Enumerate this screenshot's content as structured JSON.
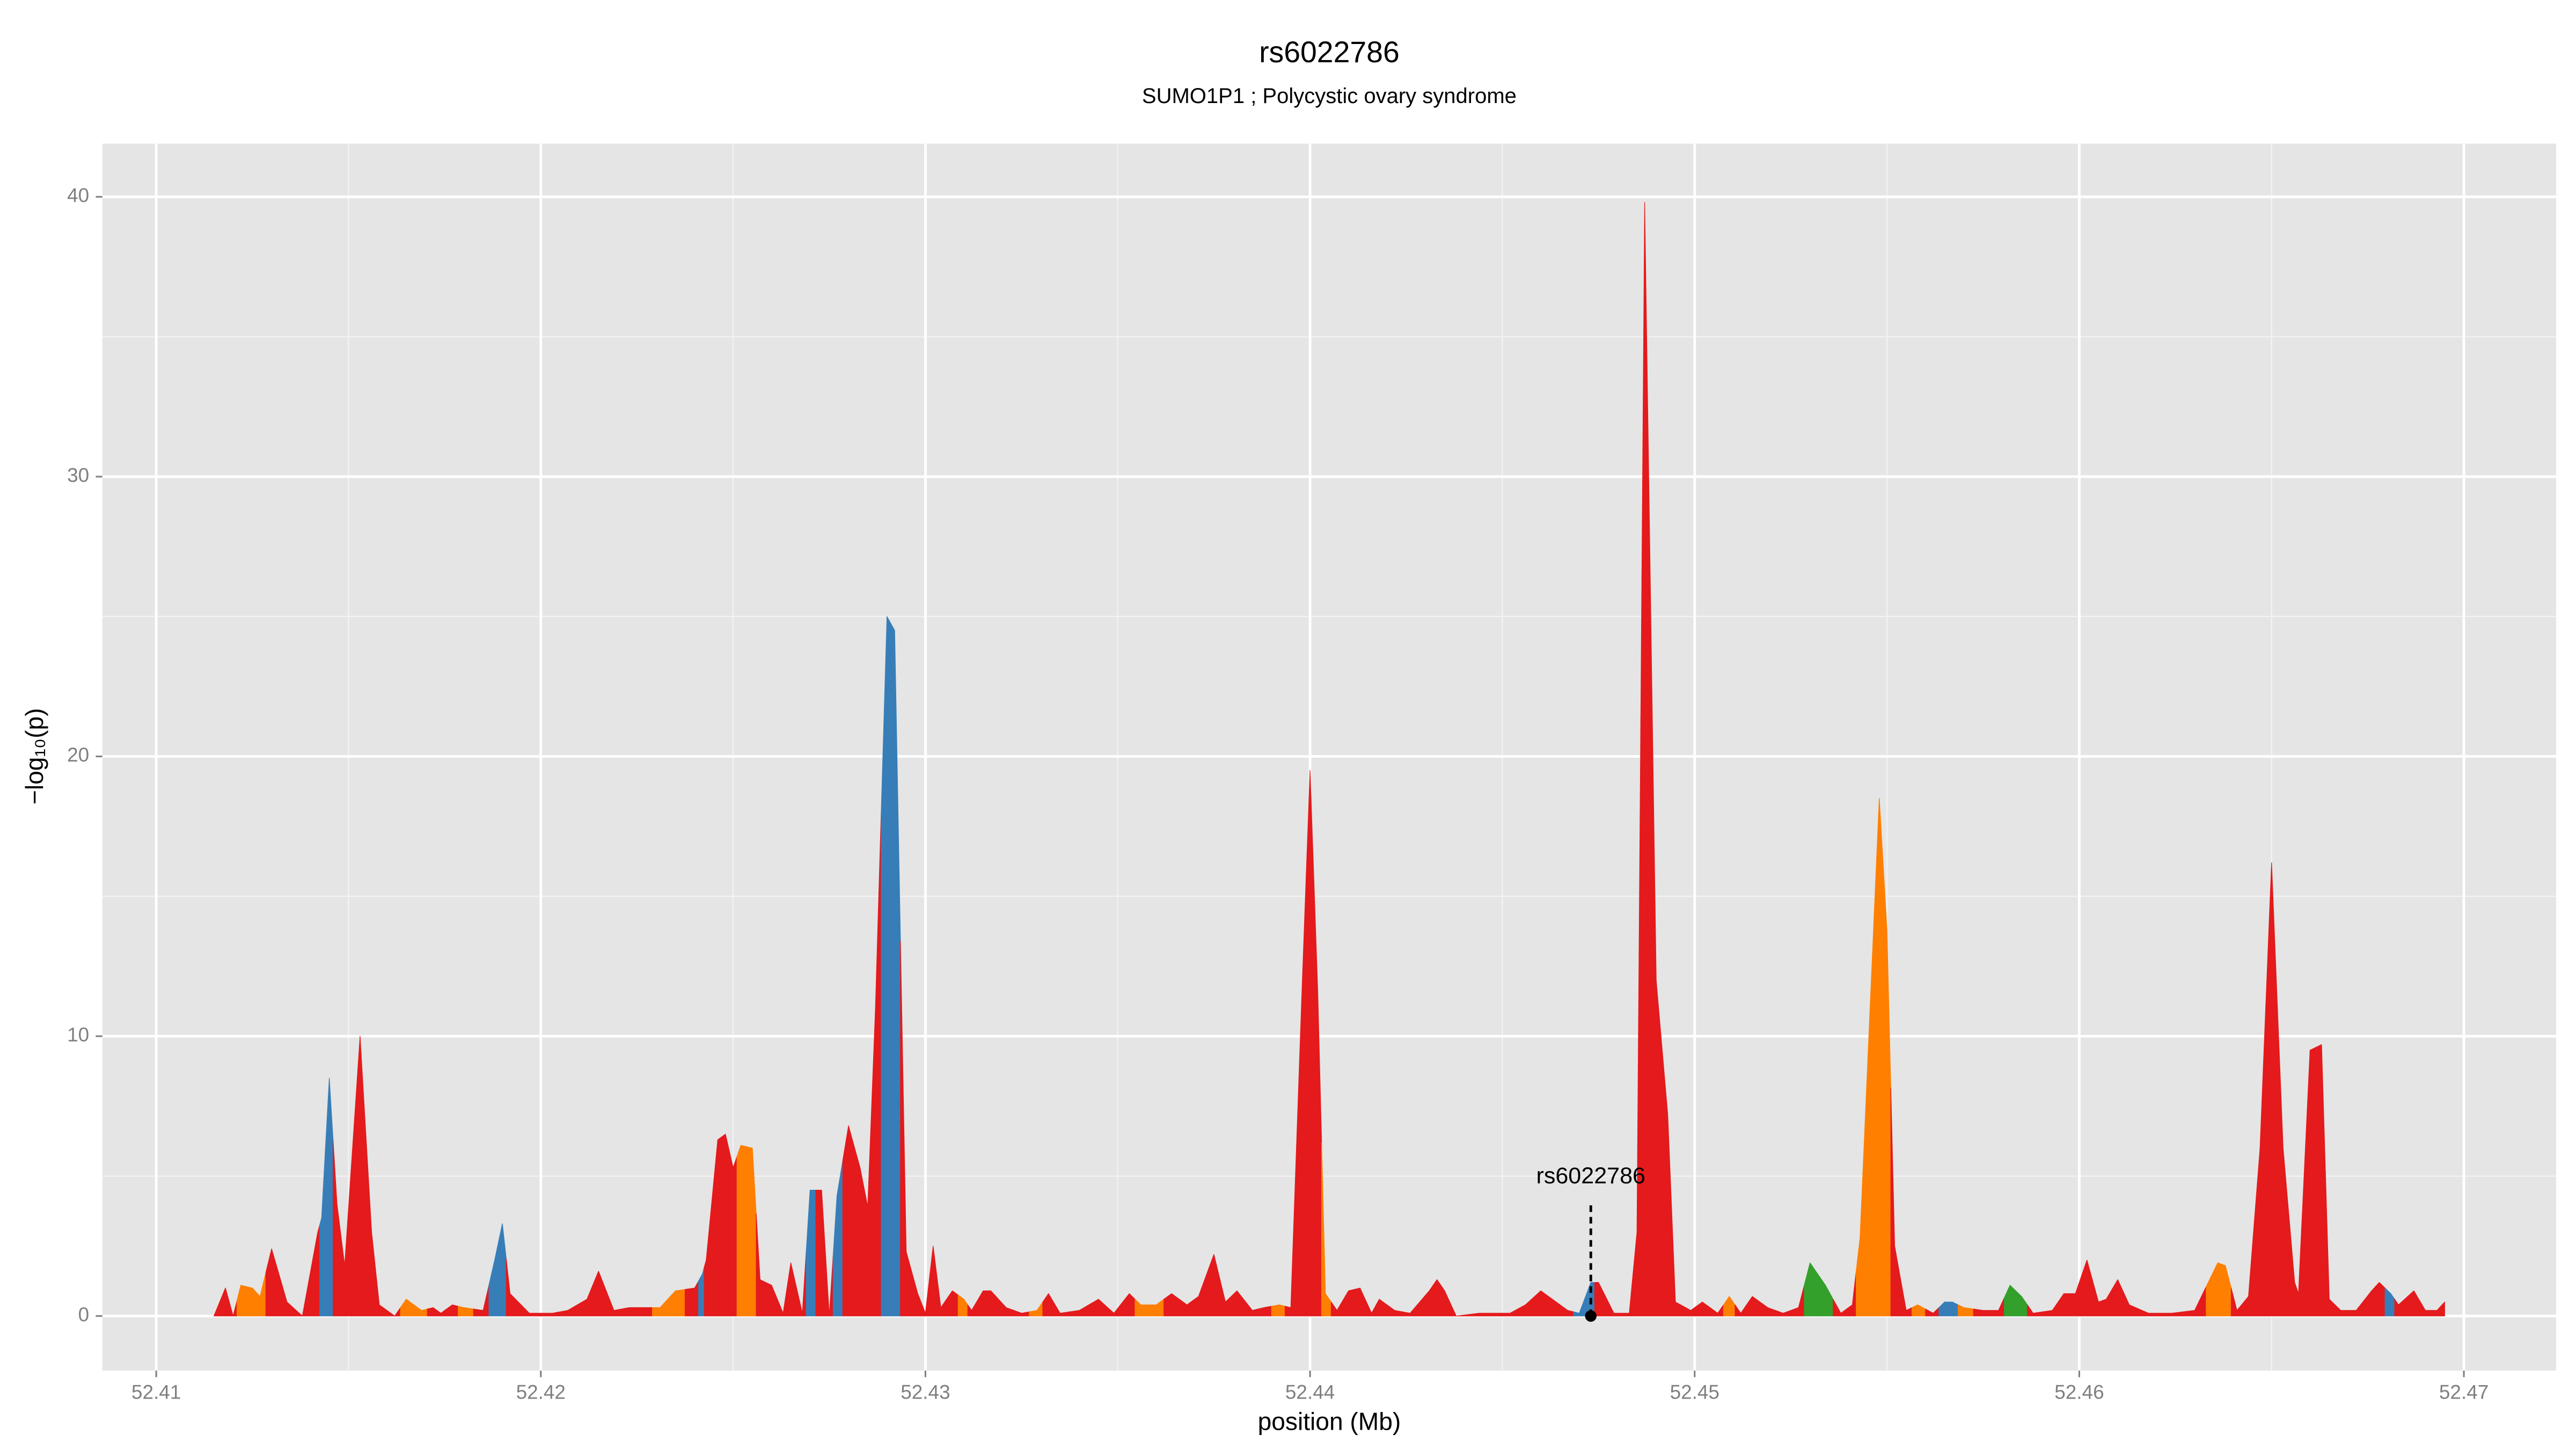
{
  "chart_data": {
    "type": "area",
    "title": "rs6022786",
    "subtitle": "SUMO1P1 ; Polycystic ovary syndrome",
    "x_label": "position (Mb)",
    "y_label": "−log₁₀(p)",
    "x": [
      52.4115,
      52.4118,
      52.412,
      52.4122,
      52.4125,
      52.4127,
      52.413,
      52.4134,
      52.4138,
      52.4142,
      52.4143,
      52.4145,
      52.4147,
      52.4149,
      52.4153,
      52.4156,
      52.4158,
      52.4162,
      52.4165,
      52.4169,
      52.4172,
      52.4174,
      52.4177,
      52.418,
      52.4185,
      52.4188,
      52.419,
      52.4192,
      52.4197,
      52.4203,
      52.4207,
      52.4212,
      52.4215,
      52.4219,
      52.4223,
      52.4227,
      52.4231,
      52.4235,
      52.424,
      52.4242,
      52.4243,
      52.4246,
      52.4248,
      52.425,
      52.4252,
      52.4255,
      52.4257,
      52.426,
      52.4263,
      52.4265,
      52.4268,
      52.427,
      52.4273,
      52.4275,
      52.4277,
      52.428,
      52.4283,
      52.4285,
      52.4287,
      52.429,
      52.4292,
      52.4295,
      52.4298,
      52.43,
      52.4302,
      52.4304,
      52.4307,
      52.431,
      52.4312,
      52.4315,
      52.4317,
      52.4321,
      52.4325,
      52.4329,
      52.4332,
      52.4335,
      52.434,
      52.4345,
      52.4349,
      52.4353,
      52.4356,
      52.436,
      52.4364,
      52.4368,
      52.4371,
      52.4375,
      52.4378,
      52.4381,
      52.4385,
      52.4388,
      52.4392,
      52.4395,
      52.4398,
      52.44,
      52.4402,
      52.4404,
      52.4407,
      52.441,
      52.4413,
      52.4416,
      52.4418,
      52.4422,
      52.4426,
      52.4431,
      52.4433,
      52.4435,
      52.4438,
      52.4444,
      52.4448,
      52.4452,
      52.4456,
      52.446,
      52.4463,
      52.4467,
      52.447,
      52.4473,
      52.4475,
      52.4479,
      52.4483,
      52.4485,
      52.4487,
      52.449,
      52.4493,
      52.4495,
      52.4499,
      52.4502,
      52.4506,
      52.4509,
      52.4512,
      52.4515,
      52.4519,
      52.4523,
      52.4527,
      52.453,
      52.4534,
      52.4538,
      52.4541,
      52.4543,
      52.4548,
      52.455,
      52.4552,
      52.4555,
      52.4558,
      52.4562,
      52.4565,
      52.4567,
      52.457,
      52.4575,
      52.4579,
      52.4582,
      52.4585,
      52.4588,
      52.4593,
      52.4596,
      52.4599,
      52.4602,
      52.4605,
      52.4607,
      52.461,
      52.4613,
      52.4618,
      52.4624,
      52.463,
      52.4636,
      52.4638,
      52.4641,
      52.4644,
      52.4647,
      52.465,
      52.4653,
      52.4656,
      52.4657,
      52.466,
      52.4663,
      52.4665,
      52.4668,
      52.4672,
      52.4676,
      52.4678,
      52.4681,
      52.4683,
      52.4687,
      52.469,
      52.4693,
      52.4695
    ],
    "values": [
      0,
      1,
      0,
      1.1,
      1,
      0.7,
      2.4,
      0.5,
      0,
      3,
      3.5,
      8.5,
      4,
      1.8,
      10,
      3,
      0.4,
      0,
      0.6,
      0.2,
      0.3,
      0.1,
      0.4,
      0.3,
      0.2,
      2,
      3.3,
      0.8,
      0.1,
      0.1,
      0.2,
      0.6,
      1.6,
      0.2,
      0.3,
      0.3,
      0.3,
      0.9,
      1,
      1.5,
      2,
      6.3,
      6.5,
      5.3,
      6.1,
      6,
      1.3,
      1.1,
      0.1,
      1.9,
      0.1,
      4.5,
      4.5,
      0,
      4.3,
      6.8,
      5.3,
      3.9,
      11,
      25,
      24.5,
      2.3,
      0.8,
      0.1,
      2.5,
      0.3,
      0.9,
      0.6,
      0.2,
      0.9,
      0.9,
      0.3,
      0.1,
      0.2,
      0.8,
      0.1,
      0.2,
      0.6,
      0.1,
      0.8,
      0.4,
      0.4,
      0.8,
      0.4,
      0.7,
      2.2,
      0.5,
      0.9,
      0.2,
      0.3,
      0.4,
      0.3,
      12,
      19.5,
      11.6,
      0.8,
      0.2,
      0.9,
      1,
      0.1,
      0.6,
      0.2,
      0.1,
      0.9,
      1.3,
      0.9,
      0,
      0.1,
      0.1,
      0.1,
      0.4,
      0.9,
      0.6,
      0.2,
      0.1,
      1.2,
      1.2,
      0.1,
      0.1,
      3,
      39.8,
      12,
      7.2,
      0.5,
      0.2,
      0.5,
      0.1,
      0.7,
      0.1,
      0.7,
      0.3,
      0.1,
      0.3,
      1.9,
      1.1,
      0.1,
      0.4,
      2.8,
      18.5,
      13.8,
      2.5,
      0.2,
      0.4,
      0.1,
      0.5,
      0.5,
      0.3,
      0.2,
      0.2,
      1.1,
      0.7,
      0.1,
      0.2,
      0.8,
      0.8,
      2,
      0.5,
      0.6,
      1.3,
      0.4,
      0.1,
      0.1,
      0.2,
      1.9,
      1.8,
      0.2,
      0.7,
      6,
      16.2,
      6,
      1.2,
      0.8,
      9.5,
      9.7,
      0.6,
      0.2,
      0.2,
      0.9,
      1.2,
      0.8,
      0.4,
      0.9,
      0.2,
      0.2,
      0.5
    ],
    "colors": [
      "#e41a1c",
      "#e41a1c",
      "#e41a1c",
      "#ff7f00",
      "#ff7f00",
      "#ff7f00",
      "#e41a1c",
      "#e41a1c",
      "#e41a1c",
      "#e41a1c",
      "#377eb8",
      "#377eb8",
      "#e41a1c",
      "#e41a1c",
      "#e41a1c",
      "#e41a1c",
      "#e41a1c",
      "#e41a1c",
      "#ff7f00",
      "#ff7f00",
      "#e41a1c",
      "#e41a1c",
      "#e41a1c",
      "#ff7f00",
      "#e41a1c",
      "#377eb8",
      "#377eb8",
      "#e41a1c",
      "#e41a1c",
      "#e41a1c",
      "#e41a1c",
      "#e41a1c",
      "#e41a1c",
      "#e41a1c",
      "#e41a1c",
      "#e41a1c",
      "#ff7f00",
      "#ff7f00",
      "#e41a1c",
      "#377eb8",
      "#e41a1c",
      "#e41a1c",
      "#e41a1c",
      "#e41a1c",
      "#ff7f00",
      "#ff7f00",
      "#e41a1c",
      "#e41a1c",
      "#e41a1c",
      "#e41a1c",
      "#e41a1c",
      "#377eb8",
      "#e41a1c",
      "#e41a1c",
      "#377eb8",
      "#e41a1c",
      "#e41a1c",
      "#e41a1c",
      "#e41a1c",
      "#377eb8",
      "#377eb8",
      "#e41a1c",
      "#e41a1c",
      "#e41a1c",
      "#e41a1c",
      "#e41a1c",
      "#e41a1c",
      "#ff7f00",
      "#e41a1c",
      "#e41a1c",
      "#e41a1c",
      "#e41a1c",
      "#e41a1c",
      "#ff7f00",
      "#e41a1c",
      "#e41a1c",
      "#e41a1c",
      "#e41a1c",
      "#e41a1c",
      "#e41a1c",
      "#ff7f00",
      "#ff7f00",
      "#e41a1c",
      "#e41a1c",
      "#e41a1c",
      "#e41a1c",
      "#e41a1c",
      "#e41a1c",
      "#e41a1c",
      "#e41a1c",
      "#ff7f00",
      "#e41a1c",
      "#e41a1c",
      "#e41a1c",
      "#e41a1c",
      "#ff7f00",
      "#e41a1c",
      "#e41a1c",
      "#e41a1c",
      "#e41a1c",
      "#e41a1c",
      "#e41a1c",
      "#e41a1c",
      "#e41a1c",
      "#e41a1c",
      "#e41a1c",
      "#e41a1c",
      "#e41a1c",
      "#e41a1c",
      "#e41a1c",
      "#e41a1c",
      "#e41a1c",
      "#e41a1c",
      "#e41a1c",
      "#377eb8",
      "#377eb8",
      "#e41a1c",
      "#e41a1c",
      "#e41a1c",
      "#e41a1c",
      "#e41a1c",
      "#e41a1c",
      "#e41a1c",
      "#e41a1c",
      "#e41a1c",
      "#e41a1c",
      "#e41a1c",
      "#ff7f00",
      "#e41a1c",
      "#e41a1c",
      "#e41a1c",
      "#e41a1c",
      "#e41a1c",
      "#33a02c",
      "#33a02c",
      "#e41a1c",
      "#e41a1c",
      "#ff7f00",
      "#ff7f00",
      "#ff7f00",
      "#e41a1c",
      "#e41a1c",
      "#ff7f00",
      "#e41a1c",
      "#377eb8",
      "#377eb8",
      "#ff7f00",
      "#e41a1c",
      "#e41a1c",
      "#33a02c",
      "#33a02c",
      "#e41a1c",
      "#e41a1c",
      "#e41a1c",
      "#e41a1c",
      "#e41a1c",
      "#e41a1c",
      "#e41a1c",
      "#e41a1c",
      "#e41a1c",
      "#e41a1c",
      "#e41a1c",
      "#e41a1c",
      "#ff7f00",
      "#ff7f00",
      "#e41a1c",
      "#e41a1c",
      "#e41a1c",
      "#e41a1c",
      "#e41a1c",
      "#e41a1c",
      "#e41a1c",
      "#e41a1c",
      "#e41a1c",
      "#e41a1c",
      "#e41a1c",
      "#e41a1c",
      "#e41a1c",
      "#e41a1c",
      "#377eb8",
      "#e41a1c",
      "#e41a1c",
      "#e41a1c",
      "#e41a1c",
      "#e41a1c"
    ],
    "xlim": [
      52.4086,
      52.4724
    ],
    "ylim": [
      -1.95,
      41.9
    ],
    "xticks": [
      52.41,
      52.42,
      52.43,
      52.44,
      52.45,
      52.46,
      52.47
    ],
    "yticks": [
      0,
      10,
      20,
      30,
      40
    ],
    "grid": true,
    "annotation": {
      "label": "rs6022786",
      "x": 52.4473,
      "y": 0
    }
  }
}
